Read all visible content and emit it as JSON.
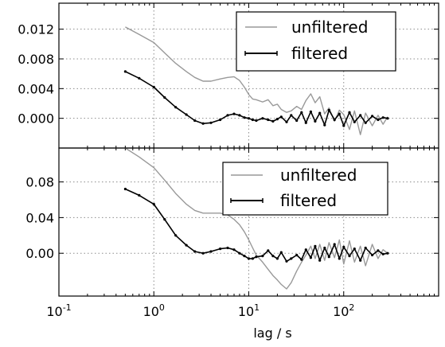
{
  "colors": {
    "unfiltered": "#999999",
    "filtered": "#000000",
    "grid": "#8c8c8c",
    "frame": "#000000"
  },
  "chart_data": [
    {
      "type": "line",
      "panel": "top",
      "xlabel": "",
      "ylabel": "",
      "x_scale": "log",
      "xlim": [
        0.1,
        1000
      ],
      "ylim": [
        -0.004,
        0.0155
      ],
      "y_ticks": [
        "0.000",
        "0.004",
        "0.008",
        "0.012"
      ],
      "y_tick_values": [
        0.0,
        0.004,
        0.008,
        0.012
      ],
      "grid": true,
      "legend": "top-right",
      "series": [
        {
          "name": "unfiltered",
          "x": [
            0.5,
            0.7,
            1.0,
            1.3,
            1.7,
            2.2,
            2.7,
            3.3,
            4.0,
            5.0,
            6.0,
            7.0,
            8.0,
            9.0,
            10.0,
            11.0,
            12.0,
            14.0,
            16.0,
            18.0,
            20.0,
            22.0,
            25.0,
            28.0,
            32.0,
            36.0,
            40.0,
            45.0,
            50.0,
            56.0,
            63.0,
            70.0,
            80.0,
            90.0,
            100.0,
            115.0,
            130.0,
            150.0,
            170.0,
            200.0,
            230.0,
            260.0,
            290.0
          ],
          "y": [
            0.0123,
            0.0113,
            0.0102,
            0.0088,
            0.0074,
            0.0063,
            0.0055,
            0.005,
            0.005,
            0.0053,
            0.0055,
            0.0056,
            0.0051,
            0.0042,
            0.0032,
            0.0026,
            0.0025,
            0.0022,
            0.0025,
            0.0017,
            0.0019,
            0.0012,
            0.0008,
            0.001,
            0.0016,
            0.0012,
            0.0024,
            0.0033,
            0.0021,
            0.0029,
            0.0006,
            0.0014,
            -0.0004,
            0.0011,
            0.0005,
            -0.0015,
            0.001,
            -0.0022,
            0.0007,
            -0.001,
            0.0004,
            -0.0008,
            0.0002
          ]
        },
        {
          "name": "filtered",
          "x": [
            0.5,
            0.7,
            1.0,
            1.3,
            1.7,
            2.2,
            2.7,
            3.3,
            4.0,
            5.0,
            6.0,
            7.0,
            8.0,
            9.0,
            10.0,
            11.0,
            12.0,
            14.0,
            16.0,
            18.0,
            20.0,
            22.0,
            25.0,
            28.0,
            32.0,
            36.0,
            40.0,
            45.0,
            50.0,
            56.0,
            63.0,
            70.0,
            80.0,
            90.0,
            100.0,
            115.0,
            130.0,
            150.0,
            170.0,
            200.0,
            230.0,
            260.0,
            290.0
          ],
          "y": [
            0.0063,
            0.0054,
            0.0042,
            0.0028,
            0.0015,
            0.0005,
            -0.0003,
            -0.0007,
            -0.0006,
            -0.0002,
            0.0004,
            0.0006,
            0.0004,
            0.0001,
            0.0,
            -0.0002,
            -0.0003,
            0.0,
            -0.0002,
            -0.0004,
            -0.0001,
            0.0002,
            -0.0005,
            0.0004,
            -0.0003,
            0.0008,
            -0.0006,
            0.0009,
            -0.0004,
            0.0007,
            -0.0009,
            0.0011,
            -0.0002,
            0.0006,
            -0.001,
            0.0008,
            -0.0005,
            0.0004,
            -0.0006,
            0.0003,
            -0.0002,
            0.0001,
            0.0
          ]
        }
      ]
    },
    {
      "type": "line",
      "panel": "bottom",
      "xlabel": "lag / s",
      "ylabel": "",
      "x_scale": "log",
      "xlim": [
        0.1,
        1000
      ],
      "ylim": [
        -0.048,
        0.118
      ],
      "x_ticks": [
        {
          "base": "10",
          "exp": "-1"
        },
        {
          "base": "10",
          "exp": "0"
        },
        {
          "base": "10",
          "exp": "1"
        },
        {
          "base": "10",
          "exp": "2"
        }
      ],
      "x_tick_values": [
        0.1,
        1,
        10,
        100
      ],
      "y_ticks": [
        "0.00",
        "0.04",
        "0.08"
      ],
      "y_tick_values": [
        0.0,
        0.04,
        0.08
      ],
      "grid": true,
      "legend": "top-right",
      "series": [
        {
          "name": "unfiltered",
          "x": [
            0.5,
            0.7,
            1.0,
            1.3,
            1.7,
            2.2,
            2.7,
            3.3,
            4.0,
            5.0,
            6.0,
            7.0,
            8.0,
            9.0,
            10.0,
            11.0,
            12.0,
            14.0,
            16.0,
            18.0,
            20.0,
            22.0,
            25.0,
            28.0,
            32.0,
            36.0,
            40.0,
            45.0,
            50.0,
            56.0,
            63.0,
            70.0,
            80.0,
            90.0,
            100.0,
            115.0,
            130.0,
            150.0,
            170.0,
            200.0,
            230.0,
            260.0,
            290.0
          ],
          "y": [
            0.118,
            0.108,
            0.096,
            0.082,
            0.067,
            0.055,
            0.048,
            0.045,
            0.045,
            0.045,
            0.043,
            0.038,
            0.032,
            0.024,
            0.015,
            0.006,
            -0.002,
            -0.01,
            -0.018,
            -0.025,
            -0.03,
            -0.035,
            -0.04,
            -0.033,
            -0.02,
            -0.01,
            -0.002,
            0.008,
            -0.006,
            0.01,
            -0.008,
            0.012,
            -0.005,
            0.015,
            -0.012,
            0.014,
            -0.01,
            0.008,
            -0.014,
            0.01,
            -0.006,
            0.004,
            0.0
          ]
        },
        {
          "name": "filtered",
          "x": [
            0.5,
            0.7,
            1.0,
            1.3,
            1.7,
            2.2,
            2.7,
            3.3,
            4.0,
            5.0,
            6.0,
            7.0,
            8.0,
            9.0,
            10.0,
            11.0,
            12.0,
            14.0,
            16.0,
            18.0,
            20.0,
            22.0,
            25.0,
            28.0,
            32.0,
            36.0,
            40.0,
            45.0,
            50.0,
            56.0,
            63.0,
            70.0,
            80.0,
            90.0,
            100.0,
            115.0,
            130.0,
            150.0,
            170.0,
            200.0,
            230.0,
            260.0,
            290.0
          ],
          "y": [
            0.072,
            0.065,
            0.055,
            0.038,
            0.02,
            0.009,
            0.002,
            0.0,
            0.002,
            0.005,
            0.006,
            0.004,
            0.0,
            -0.003,
            -0.006,
            -0.006,
            -0.004,
            -0.003,
            0.003,
            -0.003,
            -0.006,
            0.001,
            -0.009,
            -0.006,
            -0.002,
            -0.007,
            0.004,
            -0.005,
            0.008,
            -0.008,
            0.006,
            -0.004,
            0.01,
            -0.006,
            0.007,
            -0.003,
            0.005,
            -0.008,
            0.006,
            -0.002,
            0.003,
            -0.001,
            0.0
          ]
        }
      ]
    }
  ]
}
